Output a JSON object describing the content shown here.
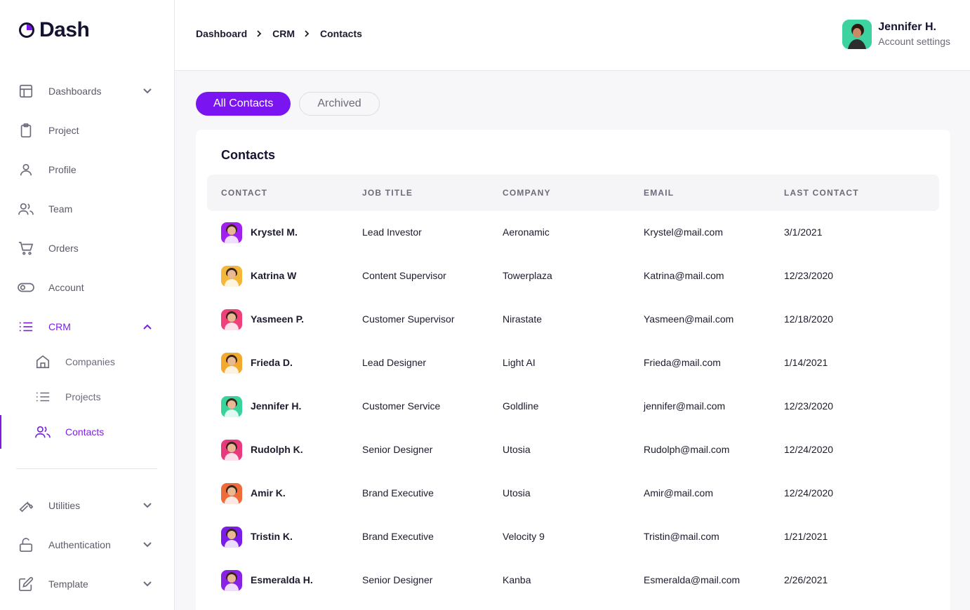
{
  "brand": {
    "name": "Dash",
    "accent": "#7a14f0"
  },
  "sidebar": {
    "items": [
      {
        "label": "Dashboards",
        "icon": "layout-icon",
        "chevron": "down"
      },
      {
        "label": "Project",
        "icon": "clipboard-icon"
      },
      {
        "label": "Profile",
        "icon": "user-icon"
      },
      {
        "label": "Team",
        "icon": "users-icon"
      },
      {
        "label": "Orders",
        "icon": "cart-icon"
      },
      {
        "label": "Account",
        "icon": "toggle-icon"
      },
      {
        "label": "CRM",
        "icon": "list-icon",
        "chevron": "up",
        "active": true
      }
    ],
    "crm_sub": [
      {
        "label": "Companies",
        "icon": "home-icon"
      },
      {
        "label": "Projects",
        "icon": "list-icon"
      },
      {
        "label": "Contacts",
        "icon": "users-icon",
        "active": true
      }
    ],
    "bottom_items": [
      {
        "label": "Utilities",
        "icon": "wrench-icon",
        "chevron": "down"
      },
      {
        "label": "Authentication",
        "icon": "lock-icon",
        "chevron": "down"
      },
      {
        "label": "Template",
        "icon": "edit-icon",
        "chevron": "down"
      }
    ]
  },
  "header": {
    "breadcrumb": [
      "Dashboard",
      "CRM",
      "Contacts"
    ],
    "user": {
      "name": "Jennifer H.",
      "subtitle": "Account settings"
    }
  },
  "tabs": [
    {
      "label": "All Contacts",
      "active": true
    },
    {
      "label": "Archived",
      "active": false
    }
  ],
  "contacts": {
    "title": "Contacts",
    "columns": [
      "CONTACT",
      "JOB TITLE",
      "COMPANY",
      "EMAIL",
      "LAST CONTACT"
    ],
    "rows": [
      {
        "name": "Krystel M.",
        "job": "Lead Investor",
        "company": "Aeronamic",
        "email": "Krystel@mail.com",
        "last": "3/1/2021",
        "avatar_bg": "#a020f0"
      },
      {
        "name": "Katrina W",
        "job": "Content Supervisor",
        "company": "Towerplaza",
        "email": "Katrina@mail.com",
        "last": "12/23/2020",
        "avatar_bg": "#f4b63b"
      },
      {
        "name": "Yasmeen P.",
        "job": "Customer Supervisor",
        "company": "Nirastate",
        "email": "Yasmeen@mail.com",
        "last": "12/18/2020",
        "avatar_bg": "#f0407a"
      },
      {
        "name": "Frieda D.",
        "job": "Lead Designer",
        "company": "Light AI",
        "email": "Frieda@mail.com",
        "last": "1/14/2021",
        "avatar_bg": "#f2a92e"
      },
      {
        "name": "Jennifer H.",
        "job": "Customer Service",
        "company": "Goldline",
        "email": "jennifer@mail.com",
        "last": "12/23/2020",
        "avatar_bg": "#3ad39c"
      },
      {
        "name": "Rudolph K.",
        "job": "Senior Designer",
        "company": "Utosia",
        "email": "Rudolph@mail.com",
        "last": "12/24/2020",
        "avatar_bg": "#e93a7d"
      },
      {
        "name": "Amir K.",
        "job": "Brand Executive",
        "company": "Utosia",
        "email": "Amir@mail.com",
        "last": "12/24/2020",
        "avatar_bg": "#ef6b3a"
      },
      {
        "name": "Tristin K.",
        "job": "Brand Executive",
        "company": "Velocity 9",
        "email": "Tristin@mail.com",
        "last": "1/21/2021",
        "avatar_bg": "#7a1de8"
      },
      {
        "name": "Esmeralda H.",
        "job": "Senior Designer",
        "company": "Kanba",
        "email": "Esmeralda@mail.com",
        "last": "2/26/2021",
        "avatar_bg": "#8a22e6"
      }
    ]
  }
}
